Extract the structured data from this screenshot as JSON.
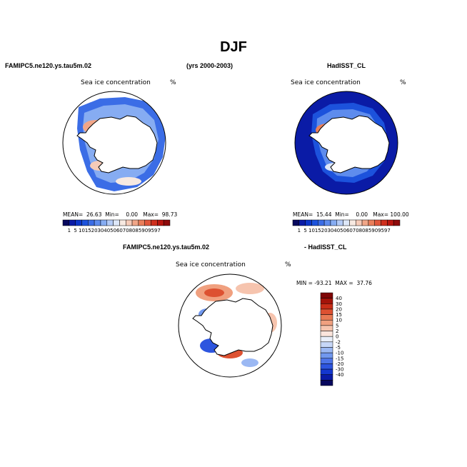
{
  "figure": {
    "title": "DJF",
    "left_header": "FAMIPC5.ne120.ys.tau5m.02",
    "center_header": "(yrs 2000-2003)",
    "right_header": "HadISST_CL",
    "diff_header_left": "FAMIPC5.ne120.ys.tau5m.02",
    "diff_header_right": "- HadISST_CL"
  },
  "colors": {
    "abs_scale": [
      "#08085e",
      "#0a1ba6",
      "#0c36c9",
      "#1c52dc",
      "#3b6de6",
      "#5e8ced",
      "#86acf2",
      "#b4cbf6",
      "#dde7f8",
      "#f7e9e1",
      "#f6cbb8",
      "#f1a688",
      "#ea7f5b",
      "#e0563a",
      "#cf2f1c",
      "#b8160f",
      "#8e0a0a"
    ],
    "diff_scale": [
      "#08085e",
      "#0a1ba6",
      "#1437cf",
      "#2d55df",
      "#4d74e8",
      "#7198ee",
      "#9bb8f3",
      "#c7d7f7",
      "#e9eff9",
      "#fbe5dc",
      "#f6c4ae",
      "#f0a07f",
      "#e87a54",
      "#dd5131",
      "#c82d18",
      "#a3130a",
      "#7f0606"
    ],
    "ocean_blue": "#0c1f9e",
    "land": "#ffffff"
  },
  "chart_data": [
    {
      "type": "heatmap",
      "projection": "south-polar-stereographic",
      "title": "Sea ice concentration",
      "units": "%",
      "stats": {
        "mean": "26.63",
        "min": "0.00",
        "max": "98.73"
      },
      "stats_text": "MEAN=  26.63  Min=    0.00   Max=  98.73",
      "levels": [
        "1",
        "5",
        "10",
        "15",
        "20",
        "30",
        "40",
        "50",
        "60",
        "70",
        "80",
        "85",
        "90",
        "95",
        "97"
      ]
    },
    {
      "type": "heatmap",
      "projection": "south-polar-stereographic",
      "title": "Sea ice concentration",
      "units": "%",
      "stats": {
        "mean": "15.44",
        "min": "0.00",
        "max": "100.00"
      },
      "stats_text": "MEAN=  15.44  Min=    0.00   Max= 100.00",
      "levels": [
        "1",
        "5",
        "10",
        "15",
        "20",
        "30",
        "40",
        "50",
        "60",
        "70",
        "80",
        "85",
        "90",
        "95",
        "97"
      ]
    },
    {
      "type": "heatmap",
      "projection": "south-polar-stereographic",
      "title": "Sea ice concentration",
      "units": "%",
      "stats": {
        "min": "-93.21",
        "max": "37.76"
      },
      "stats_text": "MIN = -93.21  MAX =  37.76",
      "levels": [
        "-40",
        "-30",
        "-20",
        "-15",
        "-10",
        "-5",
        "-2",
        "0",
        "2",
        "5",
        "10",
        "15",
        "20",
        "30",
        "40"
      ]
    }
  ]
}
